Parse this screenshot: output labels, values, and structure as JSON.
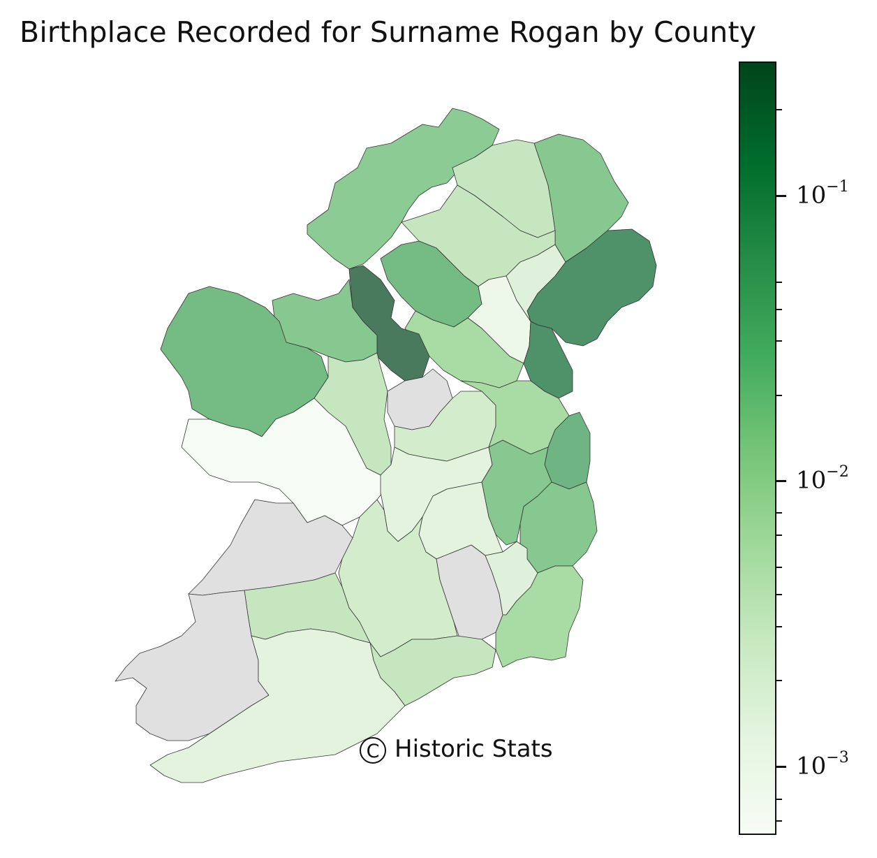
{
  "title": "Birthplace Recorded for Surname Rogan by County",
  "watermark": "Historic Stats",
  "watermark_symbol": "C",
  "colorbar": {
    "scale": "log",
    "colormap": "Greens",
    "range": [
      0.0005,
      0.35
    ],
    "ticks": [
      {
        "base": "10",
        "exp": "−1",
        "value": 0.1
      },
      {
        "base": "10",
        "exp": "−2",
        "value": 0.01
      },
      {
        "base": "10",
        "exp": "−3",
        "value": 0.001
      }
    ],
    "no_data_color": "#e0e0e0"
  },
  "colors": {
    "darkest": "#4a7a5e",
    "dark": "#5a9470",
    "mid": "#74bb84",
    "midlight": "#8ccc94",
    "light": "#a9dca4",
    "lighter": "#c6e6c0",
    "pale": "#dff1da",
    "palest": "#eef8ea",
    "nearwhite": "#f7fbf5",
    "nodata": "#e0e0e0"
  }
}
